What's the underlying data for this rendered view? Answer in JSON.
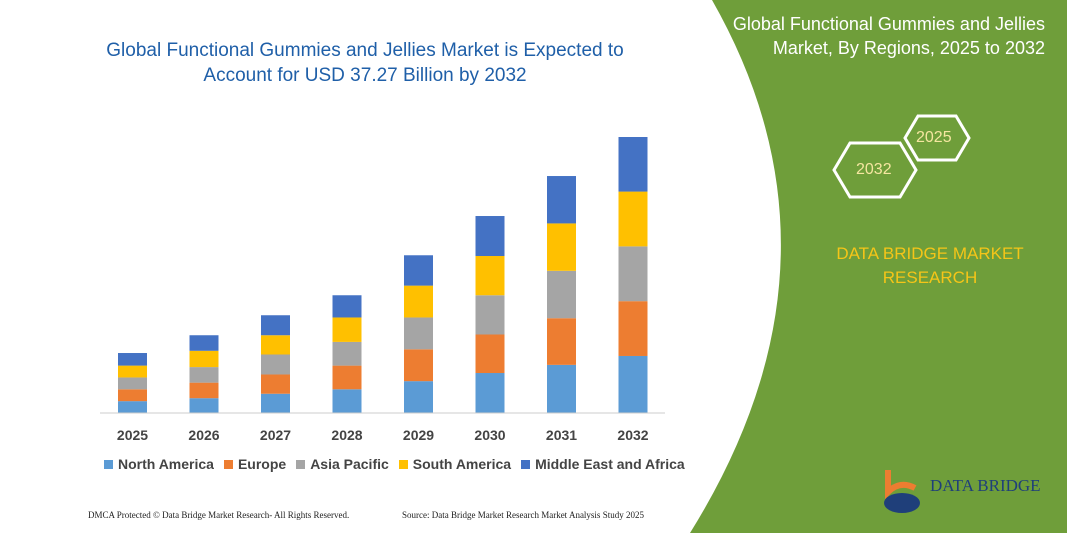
{
  "title": "Global Functional Gummies and Jellies Market is Expected to Account for USD 37.27 Billion by 2032",
  "side_title": "Global Functional Gummies and Jellies Market, By Regions, 2025 to 2032",
  "hex_labels": [
    "2025",
    "2032"
  ],
  "brand": "DATA BRIDGE MARKET RESEARCH",
  "logo_text": "DATA BRIDGE",
  "footer_left": "DMCA Protected © Data Bridge Market Research- All Rights Reserved.",
  "footer_right": "Source: Data Bridge Market Research Market Analysis Study 2025",
  "colors": {
    "green": "#6f9e3a",
    "title": "#1f5fa8"
  },
  "chart_data": {
    "type": "bar",
    "stacked": true,
    "grid": false,
    "legend": "bottom",
    "categories": [
      "2025",
      "2026",
      "2027",
      "2028",
      "2029",
      "2030",
      "2031",
      "2032"
    ],
    "series": [
      {
        "name": "North America",
        "color": "#5b9bd5",
        "values": [
          1.6,
          2.0,
          2.6,
          3.2,
          4.3,
          5.4,
          6.5,
          7.7
        ]
      },
      {
        "name": "Europe",
        "color": "#ed7d31",
        "values": [
          1.6,
          2.1,
          2.6,
          3.2,
          4.3,
          5.2,
          6.3,
          7.4
        ]
      },
      {
        "name": "Asia Pacific",
        "color": "#a5a5a5",
        "values": [
          1.6,
          2.1,
          2.7,
          3.2,
          4.3,
          5.3,
          6.4,
          7.4
        ]
      },
      {
        "name": "South America",
        "color": "#ffc000",
        "values": [
          1.6,
          2.2,
          2.6,
          3.3,
          4.3,
          5.3,
          6.4,
          7.4
        ]
      },
      {
        "name": "Middle East and Africa",
        "color": "#4472c4",
        "values": [
          1.7,
          2.1,
          2.7,
          3.0,
          4.1,
          5.4,
          6.4,
          7.37
        ]
      }
    ]
  }
}
